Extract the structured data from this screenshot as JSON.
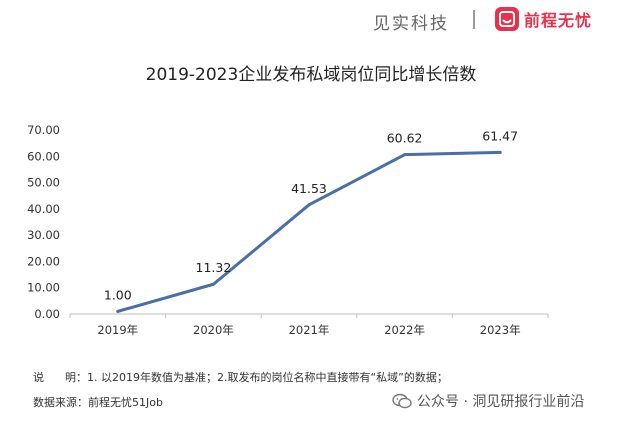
{
  "header": {
    "brand_left": "见实科技",
    "brand_right": "前程无忧",
    "logo_icon": "smile-logo-icon",
    "logo_color": "#e8314c"
  },
  "chart_data": {
    "type": "line",
    "title": "2019-2023企业发布私域岗位同比增长倍数",
    "xlabel": "",
    "ylabel": "",
    "categories": [
      "2019年",
      "2020年",
      "2021年",
      "2022年",
      "2023年"
    ],
    "values": [
      1.0,
      11.32,
      41.53,
      60.62,
      61.47
    ],
    "data_labels": [
      "1.00",
      "11.32",
      "41.53",
      "60.62",
      "61.47"
    ],
    "ylim": [
      0,
      70
    ],
    "yticks": [
      "0.00",
      "10.00",
      "20.00",
      "30.00",
      "40.00",
      "50.00",
      "60.00",
      "70.00"
    ],
    "grid": false,
    "legend": "none",
    "line_color": "#4a6fa5"
  },
  "footer": {
    "note": "说      明：1. 以2019年数值为基准；2.取发布的岗位名称中直接带有“私域”的数据；",
    "source": "数据来源：前程无忧51Job",
    "watermark_icon": "wechat-icon",
    "watermark": "公众号 · 洞见研报行业前沿"
  }
}
